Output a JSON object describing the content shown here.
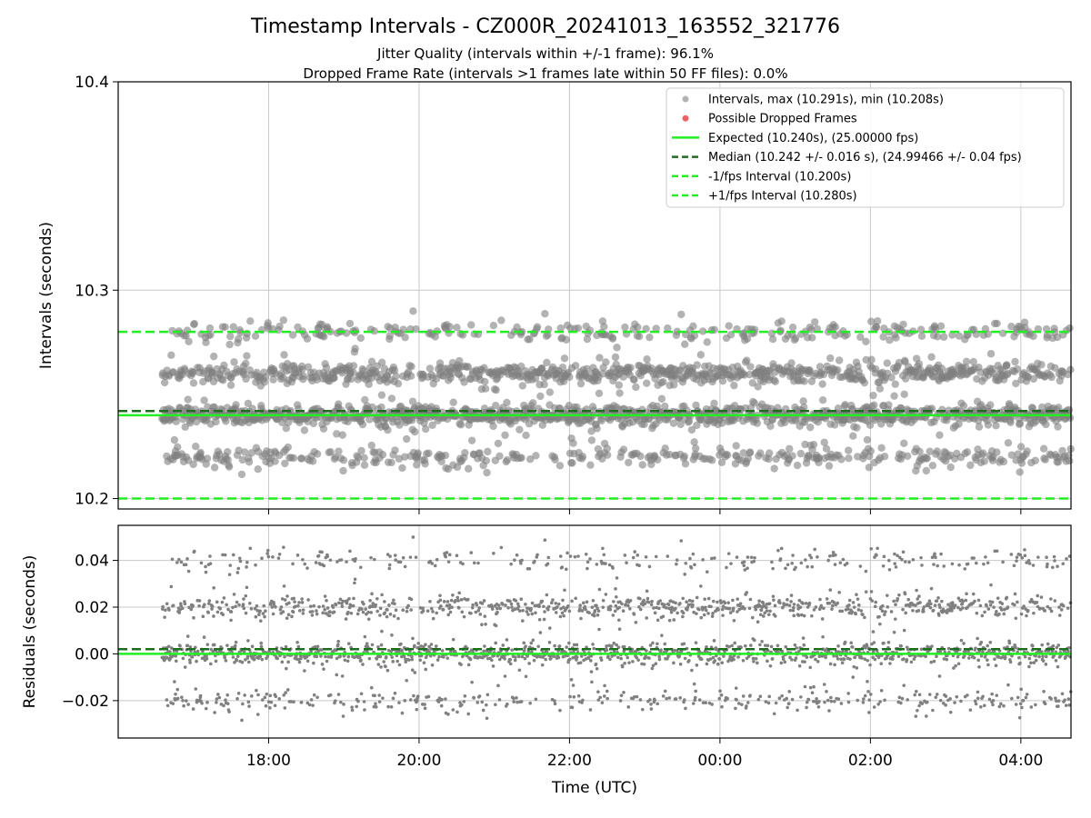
{
  "title": "Timestamp Intervals - CZ000R_20241013_163552_321776",
  "subtitle_1": "Jitter Quality (intervals within +/-1 frame): 96.1%",
  "subtitle_2": "Dropped Frame Rate (intervals >1 frames late within 50 FF files): 0.0%",
  "colors": {
    "intervals": "#808080",
    "dropped": "#e8484f",
    "expected": "#22ee22",
    "median": "#1f6b1f",
    "bounds": "#22ee22",
    "grid": "#c8c8c8"
  },
  "chart_data": [
    {
      "type": "scatter",
      "ylabel": "Intervals (seconds)",
      "ylim": [
        10.195,
        10.4
      ],
      "yticks": [
        "10.2",
        "10.3",
        "10.4"
      ],
      "ytick_values": [
        10.2,
        10.3,
        10.4
      ],
      "xlim": [
        "2024-10-13T16:00",
        "2024-10-14T04:40"
      ],
      "xticks": [
        "18:00",
        "20:00",
        "22:00",
        "00:00",
        "02:00",
        "04:00"
      ],
      "xtick_values": [
        "2024-10-13T18:00",
        "2024-10-13T20:00",
        "2024-10-13T22:00",
        "2024-10-14T00:00",
        "2024-10-14T02:00",
        "2024-10-14T04:00"
      ],
      "grid": true,
      "legend_position": "top-right",
      "data_span": [
        "2024-10-13T16:35",
        "2024-10-14T04:40"
      ],
      "series": [
        {
          "name": "Intervals, max (10.291s), min (10.208s)",
          "kind": "points",
          "levels": [
            10.22,
            10.24,
            10.26,
            10.28
          ],
          "level_weights": [
            0.15,
            0.42,
            0.33,
            0.1
          ],
          "spread": 0.004,
          "max": 10.291,
          "min": 10.208
        },
        {
          "name": "Possible Dropped Frames",
          "kind": "points",
          "values": []
        },
        {
          "name": "Expected (10.240s), (25.00000 fps)",
          "kind": "hline",
          "y": 10.24
        },
        {
          "name": "Median (10.242 +/- 0.016 s), (24.99466 +/- 0.04 fps)",
          "kind": "hline",
          "y": 10.242
        },
        {
          "name": "-1/fps Interval (10.200s)",
          "kind": "hline",
          "y": 10.2
        },
        {
          "name": "+1/fps Interval (10.280s)",
          "kind": "hline",
          "y": 10.28
        }
      ]
    },
    {
      "type": "scatter",
      "xlabel": "Time (UTC)",
      "ylabel": "Residuals (seconds)",
      "ylim": [
        -0.036,
        0.055
      ],
      "yticks": [
        "−0.02",
        "0.00",
        "0.02",
        "0.04"
      ],
      "ytick_values": [
        -0.02,
        0.0,
        0.02,
        0.04
      ],
      "xlim": [
        "2024-10-13T16:00",
        "2024-10-14T04:40"
      ],
      "xticks": [
        "18:00",
        "20:00",
        "22:00",
        "00:00",
        "02:00",
        "04:00"
      ],
      "xtick_values": [
        "2024-10-13T18:00",
        "2024-10-13T20:00",
        "2024-10-13T22:00",
        "2024-10-14T00:00",
        "2024-10-14T02:00",
        "2024-10-14T04:00"
      ],
      "grid": true,
      "series": [
        {
          "kind": "points",
          "levels": [
            -0.02,
            0.0,
            0.02,
            0.04
          ],
          "level_weights": [
            0.15,
            0.42,
            0.33,
            0.1
          ],
          "spread": 0.004
        },
        {
          "kind": "hline",
          "y": 0.0
        },
        {
          "kind": "hline",
          "y": 0.002
        }
      ]
    }
  ]
}
